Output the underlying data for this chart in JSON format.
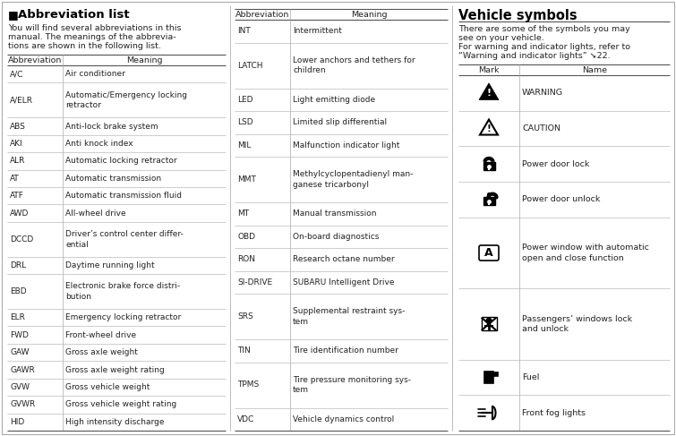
{
  "title_left": "Abbreviation list",
  "title_left_symbol": "■",
  "intro_text": "You will find several abbreviations in this\nmanual. The meanings of the abbrevia-\ntions are shown in the following list.",
  "table1_headers": [
    "Abbreviation",
    "Meaning"
  ],
  "table1_rows": [
    [
      "A/C",
      "Air conditioner"
    ],
    [
      "A/ELR",
      "Automatic/Emergency locking\nretractor"
    ],
    [
      "ABS",
      "Anti-lock brake system"
    ],
    [
      "AKI",
      "Anti knock index"
    ],
    [
      "ALR",
      "Automatic locking retractor"
    ],
    [
      "AT",
      "Automatic transmission"
    ],
    [
      "ATF",
      "Automatic transmission fluid"
    ],
    [
      "AWD",
      "All-wheel drive"
    ],
    [
      "DCCD",
      "Driver’s control center differ-\nential"
    ],
    [
      "DRL",
      "Daytime running light"
    ],
    [
      "EBD",
      "Electronic brake force distri-\nbution"
    ],
    [
      "ELR",
      "Emergency locking retractor"
    ],
    [
      "FWD",
      "Front-wheel drive"
    ],
    [
      "GAW",
      "Gross axle weight"
    ],
    [
      "GAWR",
      "Gross axle weight rating"
    ],
    [
      "GVW",
      "Gross vehicle weight"
    ],
    [
      "GVWR",
      "Gross vehicle weight rating"
    ],
    [
      "HID",
      "High intensity discharge"
    ]
  ],
  "table2_rows": [
    [
      "INT",
      "Intermittent"
    ],
    [
      "LATCH",
      "Lower anchors and tethers for\nchildren"
    ],
    [
      "LED",
      "Light emitting diode"
    ],
    [
      "LSD",
      "Limited slip differential"
    ],
    [
      "MIL",
      "Malfunction indicator light"
    ],
    [
      "MMT",
      "Methylcyclopentadienyl man-\nganese tricarbonyl"
    ],
    [
      "MT",
      "Manual transmission"
    ],
    [
      "OBD",
      "On-board diagnostics"
    ],
    [
      "RON",
      "Research octane number"
    ],
    [
      "SI-DRIVE",
      "SUBARU Intelligent Drive"
    ],
    [
      "SRS",
      "Supplemental restraint sys-\ntem"
    ],
    [
      "TIN",
      "Tire identification number"
    ],
    [
      "TPMS",
      "Tire pressure monitoring sys-\ntem"
    ],
    [
      "VDC",
      "Vehicle dynamics control"
    ]
  ],
  "title_right": "Vehicle symbols",
  "intro_right1": "There are some of the symbols you may\nsee on your vehicle.",
  "intro_right2": "For warning and indicator lights, refer to\n“Warning and indicator lights” ➘22.",
  "table3_headers": [
    "Mark",
    "Name"
  ],
  "table3_names": [
    "WARNING",
    "CAUTION",
    "Power door lock",
    "Power door unlock",
    "Power window with automatic\nopen and close function",
    "Passengers’ windows lock\nand unlock",
    "Fuel",
    "Front fog lights"
  ],
  "text_color": "#222222",
  "line_color_heavy": "#555555",
  "line_color_light": "#aaaaaa",
  "sep_color": "#bbbbbb"
}
